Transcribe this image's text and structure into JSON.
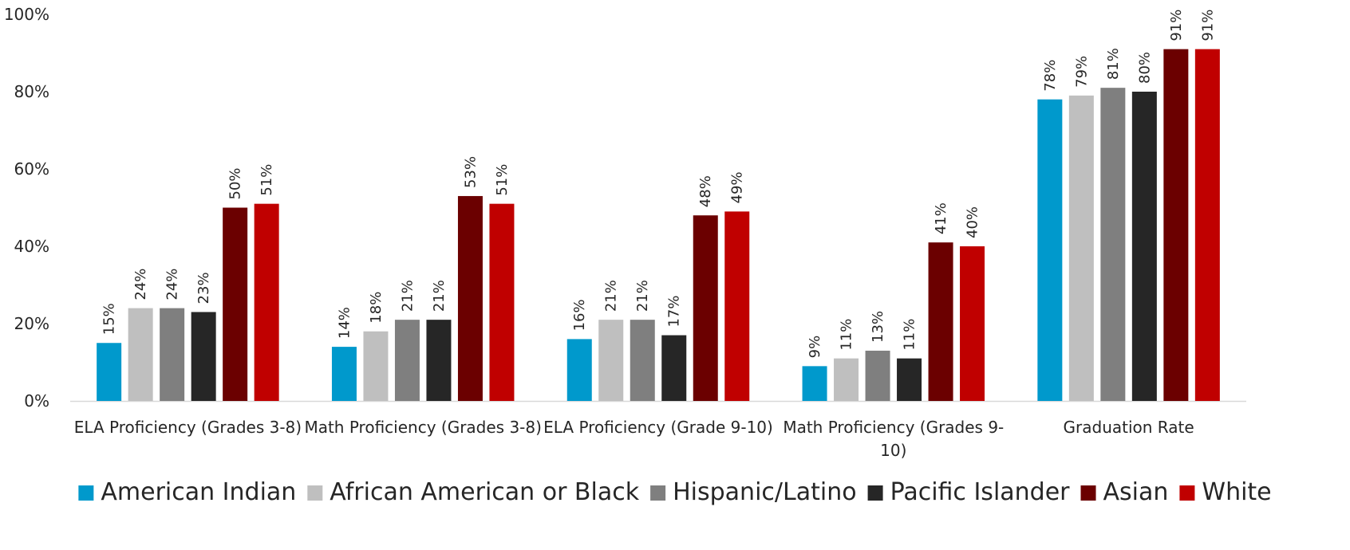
{
  "chart_data": {
    "type": "bar",
    "title": "",
    "xlabel": "",
    "ylabel": "",
    "ylim": [
      0,
      100
    ],
    "y_ticks": [
      "0%",
      "20%",
      "40%",
      "60%",
      "80%",
      "100%"
    ],
    "y_tick_values": [
      0,
      20,
      40,
      60,
      80,
      100
    ],
    "grid": false,
    "legend_position": "bottom",
    "categories": [
      [
        "ELA Proficiency (Grades 3-8)"
      ],
      [
        "Math Proficiency (Grades 3-8)"
      ],
      [
        "ELA Proficiency (Grade 9-10)"
      ],
      [
        "Math Proficiency (Grades 9-",
        "10)"
      ],
      [
        "Graduation Rate"
      ]
    ],
    "series": [
      {
        "name": "American Indian",
        "color": "#0099cc",
        "values": [
          15,
          14,
          16,
          9,
          78
        ],
        "labels": [
          "15%",
          "14%",
          "16%",
          "9%",
          "78%"
        ]
      },
      {
        "name": "African American or Black",
        "color": "#bfbfbf",
        "values": [
          24,
          18,
          21,
          11,
          79
        ],
        "labels": [
          "24%",
          "18%",
          "21%",
          "11%",
          "79%"
        ]
      },
      {
        "name": "Hispanic/Latino",
        "color": "#7f7f7f",
        "values": [
          24,
          21,
          21,
          13,
          81
        ],
        "labels": [
          "24%",
          "21%",
          "21%",
          "13%",
          "81%"
        ]
      },
      {
        "name": "Pacific Islander",
        "color": "#262626",
        "values": [
          23,
          21,
          17,
          11,
          80
        ],
        "labels": [
          "23%",
          "21%",
          "17%",
          "11%",
          "80%"
        ]
      },
      {
        "name": "Asian",
        "color": "#6b0000",
        "values": [
          50,
          53,
          48,
          41,
          91
        ],
        "labels": [
          "50%",
          "53%",
          "48%",
          "41%",
          "91%"
        ]
      },
      {
        "name": "White",
        "color": "#c00000",
        "values": [
          51,
          51,
          49,
          40,
          91
        ],
        "labels": [
          "51%",
          "51%",
          "49%",
          "40%",
          "91%"
        ]
      }
    ]
  }
}
